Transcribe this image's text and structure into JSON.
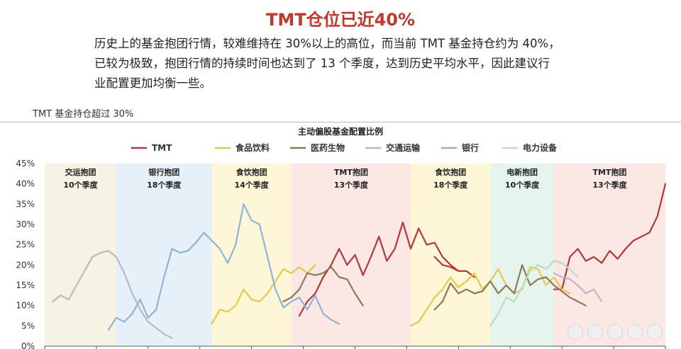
{
  "header": {
    "title": "TMT仓位已近40%",
    "para_lines": [
      "历史上的基金抱团行情，较难维持在 30%以上的高位，而当前 TMT 基金持仓约为 40%，",
      "已较为极致，抱团行情的持续时间也达到了 13 个季度，达到历史平均水平，因此建议行",
      "业配置更加均衡一些。"
    ],
    "subnote": "TMT 基金持仓超过 30%"
  },
  "chart_data": {
    "type": "line",
    "title": "主动偏股基金配置比例",
    "y_ticks": [
      "45%",
      "40%",
      "35%",
      "30%",
      "25%",
      "20%",
      "15%",
      "10%",
      "5%",
      "0%"
    ],
    "ylim": [
      0,
      45
    ],
    "x_range": [
      0,
      78
    ],
    "legend_position": "top",
    "bands": [
      {
        "label": "交运抱团",
        "sub": "10个季度",
        "start": 0,
        "end": 9,
        "color": "#f7f3e4"
      },
      {
        "label": "银行抱团",
        "sub": "18个季度",
        "start": 9,
        "end": 21,
        "color": "#e6f0f8"
      },
      {
        "label": "食饮抱团",
        "sub": "14个季度",
        "start": 21,
        "end": 31,
        "color": "#fdf7d8"
      },
      {
        "label": "TMT抱团",
        "sub": "13个季度",
        "start": 31,
        "end": 46,
        "color": "#fbe7e4"
      },
      {
        "label": "食饮抱团",
        "sub": "18个季度",
        "start": 46,
        "end": 56,
        "color": "#fdf7d8"
      },
      {
        "label": "电新抱团",
        "sub": "10个季度",
        "start": 56,
        "end": 64,
        "color": "#e6f4ee"
      },
      {
        "label": "TMT抱团",
        "sub": "13个季度",
        "start": 64,
        "end": 78,
        "color": "#fbe7e4"
      }
    ],
    "series": [
      {
        "name": "TMT",
        "color": "#b5373a",
        "segments": [
          {
            "x0": 32,
            "values": [
              7.5,
              11,
              13,
              17,
              20,
              24,
              20,
              22.5,
              17.5,
              22,
              27,
              21,
              24,
              30.5,
              24,
              29,
              25,
              25.5,
              22,
              20,
              18.5
            ]
          },
          {
            "x0": 49,
            "values": [
              22,
              20,
              19.5,
              18.5,
              18.5,
              17
            ]
          },
          {
            "x0": 64,
            "values": [
              14,
              14,
              22,
              24,
              21,
              22,
              20.5,
              23.5,
              21.5,
              24,
              26,
              27,
              28,
              32,
              40
            ]
          }
        ]
      },
      {
        "name": "食品饮料",
        "color": "#e8c84a",
        "segments": [
          {
            "x0": 21,
            "values": [
              5.5,
              9,
              8.5,
              10,
              14,
              11.5,
              11,
              13,
              16,
              19,
              18,
              19.5,
              18,
              20
            ]
          },
          {
            "x0": 46,
            "values": [
              5,
              6,
              9,
              12,
              14,
              17,
              14.5,
              16,
              18,
              14,
              16,
              19,
              15,
              13,
              14,
              19.5,
              19,
              15,
              17,
              14,
              13
            ]
          }
        ]
      },
      {
        "name": "医药生物",
        "color": "#8a7a56",
        "segments": [
          {
            "x0": 30,
            "values": [
              11,
              12,
              14,
              18,
              17.5,
              18,
              19.5,
              17,
              16.5,
              13,
              10
            ]
          },
          {
            "x0": 49,
            "values": [
              9,
              11,
              15.5,
              13,
              14,
              13,
              13.5,
              16,
              13,
              15,
              13,
              20,
              15,
              16.5,
              17,
              15,
              13.5,
              12,
              11,
              10
            ]
          }
        ]
      },
      {
        "name": "交通运输",
        "color": "#b9b9c0",
        "segments": [
          {
            "x0": 1,
            "values": [
              11,
              12.5,
              11.5,
              15,
              18.5,
              22,
              23,
              23.5,
              22,
              18,
              13,
              9,
              6,
              4.5,
              3,
              2
            ]
          },
          {
            "x0": 64,
            "values": [
              18,
              17,
              16.5,
              15,
              13,
              14,
              11
            ]
          }
        ]
      },
      {
        "name": "银行",
        "color": "#8fb4d6",
        "segments": [
          {
            "x0": 8,
            "values": [
              4,
              7,
              6,
              8,
              11.5,
              7,
              9,
              17,
              24,
              23,
              23.5,
              25.5,
              28,
              26,
              24,
              20.5,
              25,
              35,
              31,
              30,
              22,
              14,
              9.5,
              11,
              12,
              9,
              12.5,
              8,
              6.5,
              5.5
            ]
          }
        ]
      },
      {
        "name": "电力设备",
        "color": "#b9dcc8",
        "segments": [
          {
            "x0": 56,
            "values": [
              5,
              8,
              12,
              11,
              14.5,
              18.5,
              20,
              19,
              21,
              20.5,
              19,
              17
            ]
          }
        ]
      }
    ]
  }
}
